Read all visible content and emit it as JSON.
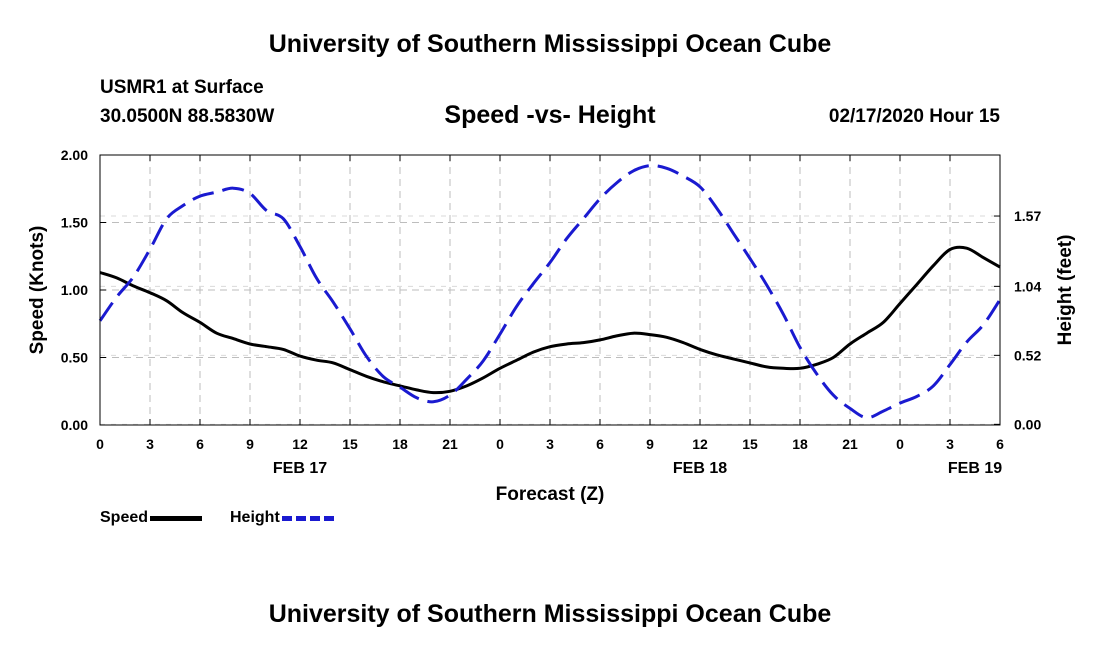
{
  "header": {
    "title": "University of Southern Mississippi Ocean Cube",
    "station": "USMR1 at Surface",
    "coords": "30.0500N 88.5830W",
    "subtitle": "Speed -vs- Height",
    "datetime": "02/17/2020 Hour 15"
  },
  "footer": {
    "title": "University of Southern Mississippi Ocean Cube"
  },
  "legend": {
    "speed_label": "Speed",
    "height_label": "Height"
  },
  "colors": {
    "speed": "#000000",
    "height": "#1a1ad0",
    "grid": "#bdbdbd"
  },
  "chart_data": {
    "type": "line",
    "title": "Speed -vs- Height",
    "xlabel": "Forecast (Z)",
    "ylabel": "Speed (Knots)",
    "y2label": "Height (feet)",
    "xlim": [
      0,
      54
    ],
    "ylim": [
      0,
      2.0
    ],
    "y2lim": [
      -0.005,
      2.03
    ],
    "x_ticks": [
      0,
      3,
      6,
      9,
      12,
      15,
      18,
      21,
      24,
      27,
      30,
      33,
      36,
      39,
      42,
      45,
      48,
      51,
      54
    ],
    "x_tick_labels": [
      "0",
      "3",
      "6",
      "9",
      "12",
      "15",
      "18",
      "21",
      "0",
      "3",
      "6",
      "9",
      "12",
      "15",
      "18",
      "21",
      "0",
      "3",
      "6"
    ],
    "date_labels": [
      {
        "x": 12,
        "label": "FEB 17"
      },
      {
        "x": 36,
        "label": "FEB 18"
      },
      {
        "x": 52.5,
        "label": "FEB 19"
      }
    ],
    "y_ticks": [
      0.0,
      0.5,
      1.0,
      1.5,
      2.0
    ],
    "y_tick_labels": [
      "0.00",
      "0.50",
      "1.00",
      "1.50",
      "2.00"
    ],
    "y2_ticks": [
      0.0,
      0.52,
      1.04,
      1.57
    ],
    "y2_tick_labels": [
      "0.00",
      "0.52",
      "1.04",
      "1.57"
    ],
    "grid": true,
    "series": [
      {
        "name": "Speed",
        "axis": "left",
        "style": "solid",
        "x": [
          0,
          1,
          2,
          3,
          4,
          5,
          6,
          7,
          8,
          9,
          10,
          11,
          12,
          13,
          14,
          15,
          16,
          17,
          18,
          19,
          20,
          21,
          22,
          23,
          24,
          25,
          26,
          27,
          28,
          29,
          30,
          31,
          32,
          33,
          34,
          35,
          36,
          37,
          38,
          39,
          40,
          41,
          42,
          43,
          44,
          45,
          46,
          47,
          48,
          49,
          50,
          51,
          52,
          53,
          54
        ],
        "values": [
          1.13,
          1.09,
          1.03,
          0.98,
          0.92,
          0.83,
          0.76,
          0.68,
          0.64,
          0.6,
          0.58,
          0.56,
          0.51,
          0.48,
          0.46,
          0.41,
          0.36,
          0.32,
          0.29,
          0.26,
          0.24,
          0.25,
          0.29,
          0.35,
          0.42,
          0.48,
          0.54,
          0.58,
          0.6,
          0.61,
          0.63,
          0.66,
          0.68,
          0.67,
          0.65,
          0.61,
          0.56,
          0.52,
          0.49,
          0.46,
          0.43,
          0.42,
          0.42,
          0.45,
          0.5,
          0.6,
          0.68,
          0.76,
          0.9,
          1.04,
          1.18,
          1.3,
          1.31,
          1.24,
          1.17
        ]
      },
      {
        "name": "Height",
        "axis": "right",
        "style": "dashed",
        "x": [
          0,
          1,
          2,
          3,
          4,
          5,
          6,
          7,
          8,
          9,
          10,
          11,
          12,
          13,
          14,
          15,
          16,
          17,
          18,
          19,
          20,
          21,
          22,
          23,
          24,
          25,
          26,
          27,
          28,
          29,
          30,
          31,
          32,
          33,
          34,
          35,
          36,
          37,
          38,
          39,
          40,
          41,
          42,
          43,
          44,
          45,
          46,
          47,
          48,
          49,
          50,
          51,
          52,
          53,
          54
        ],
        "values": [
          0.78,
          0.96,
          1.11,
          1.32,
          1.55,
          1.65,
          1.72,
          1.75,
          1.78,
          1.74,
          1.61,
          1.55,
          1.34,
          1.1,
          0.92,
          0.72,
          0.51,
          0.36,
          0.28,
          0.2,
          0.17,
          0.22,
          0.34,
          0.48,
          0.68,
          0.89,
          1.06,
          1.22,
          1.4,
          1.55,
          1.7,
          1.82,
          1.91,
          1.95,
          1.93,
          1.87,
          1.79,
          1.63,
          1.44,
          1.25,
          1.05,
          0.83,
          0.58,
          0.38,
          0.22,
          0.12,
          0.05,
          0.1,
          0.16,
          0.21,
          0.29,
          0.45,
          0.62,
          0.75,
          0.94
        ]
      }
    ]
  },
  "xaxis": {
    "label": "Forecast (Z)"
  },
  "yaxis": {
    "label": "Speed (Knots)"
  },
  "y2axis": {
    "label": "Height (feet)"
  }
}
